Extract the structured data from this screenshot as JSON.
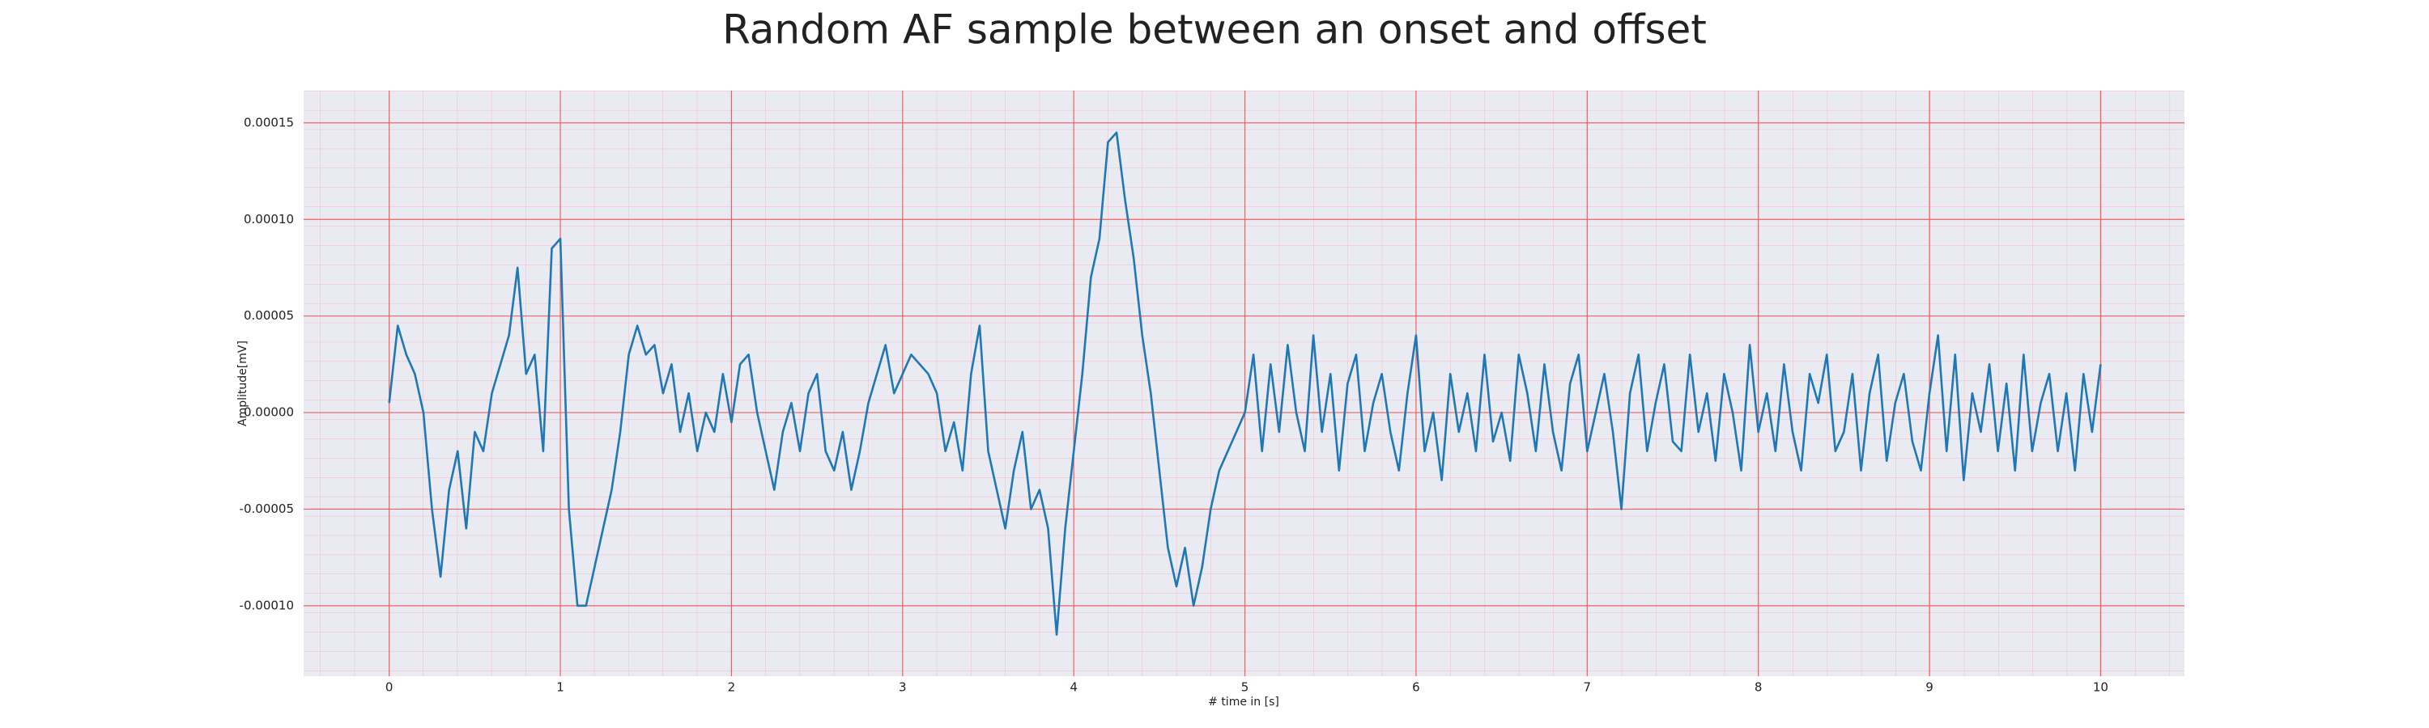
{
  "chart_data": {
    "type": "line",
    "title": "Random AF sample between an onset and offset",
    "xlabel": "# time in [s]",
    "ylabel": "Amplitude[mV]",
    "color": "#1f77b4",
    "grid": true,
    "xlim": [
      -0.5,
      10.49
    ],
    "ylim": [
      -0.0001365,
      0.0001667
    ],
    "xticks": [
      0,
      1,
      2,
      3,
      4,
      5,
      6,
      7,
      8,
      9,
      10
    ],
    "yticks": [
      {
        "value": -0.0001,
        "label": "-0.00010"
      },
      {
        "value": -5e-05,
        "label": "-0.00005"
      },
      {
        "value": 0,
        "label": "0.00000"
      },
      {
        "value": 5e-05,
        "label": "0.00005"
      },
      {
        "value": 0.0001,
        "label": "0.00010"
      },
      {
        "value": 0.00015,
        "label": "0.00015"
      }
    ],
    "x": [
      0,
      0.05,
      0.1,
      0.15,
      0.2,
      0.25,
      0.3,
      0.35,
      0.4,
      0.45,
      0.5,
      0.55,
      0.6,
      0.65,
      0.7,
      0.75,
      0.8,
      0.85,
      0.9,
      0.95,
      1,
      1.05,
      1.1,
      1.15,
      1.2,
      1.25,
      1.3,
      1.35,
      1.4,
      1.45,
      1.5,
      1.55,
      1.6,
      1.65,
      1.7,
      1.75,
      1.8,
      1.85,
      1.9,
      1.95,
      2,
      2.05,
      2.1,
      2.15,
      2.2,
      2.25,
      2.3,
      2.35,
      2.4,
      2.45,
      2.5,
      2.55,
      2.6,
      2.65,
      2.7,
      2.75,
      2.8,
      2.85,
      2.9,
      2.95,
      3,
      3.05,
      3.1,
      3.15,
      3.2,
      3.25,
      3.3,
      3.35,
      3.4,
      3.45,
      3.5,
      3.55,
      3.6,
      3.65,
      3.7,
      3.75,
      3.8,
      3.85,
      3.9,
      3.95,
      4,
      4.05,
      4.1,
      4.15,
      4.2,
      4.25,
      4.3,
      4.35,
      4.4,
      4.45,
      4.5,
      4.55,
      4.6,
      4.65,
      4.7,
      4.75,
      4.8,
      4.85,
      4.9,
      4.95,
      5,
      5.05,
      5.1,
      5.15,
      5.2,
      5.25,
      5.3,
      5.35,
      5.4,
      5.45,
      5.5,
      5.55,
      5.6,
      5.65,
      5.7,
      5.75,
      5.8,
      5.85,
      5.9,
      5.95,
      6,
      6.05,
      6.1,
      6.15,
      6.2,
      6.25,
      6.3,
      6.35,
      6.4,
      6.45,
      6.5,
      6.55,
      6.6,
      6.65,
      6.7,
      6.75,
      6.8,
      6.85,
      6.9,
      6.95,
      7,
      7.05,
      7.1,
      7.15,
      7.2,
      7.25,
      7.3,
      7.35,
      7.4,
      7.45,
      7.5,
      7.55,
      7.6,
      7.65,
      7.7,
      7.75,
      7.8,
      7.85,
      7.9,
      7.95,
      8,
      8.05,
      8.1,
      8.15,
      8.2,
      8.25,
      8.3,
      8.35,
      8.4,
      8.45,
      8.5,
      8.55,
      8.6,
      8.65,
      8.7,
      8.75,
      8.8,
      8.85,
      8.9,
      8.95,
      9,
      9.05,
      9.1,
      9.15,
      9.2,
      9.25,
      9.3,
      9.35,
      9.4,
      9.45,
      9.5,
      9.55,
      9.6,
      9.65,
      9.7,
      9.75,
      9.8,
      9.85,
      9.9,
      9.95,
      10
    ],
    "values": [
      5e-06,
      4.5e-05,
      3e-05,
      2e-05,
      0,
      -5e-05,
      -8.5e-05,
      -4e-05,
      -2e-05,
      -6e-05,
      -1e-05,
      -2e-05,
      1e-05,
      2.5e-05,
      4e-05,
      7.5e-05,
      2e-05,
      3e-05,
      -2e-05,
      8.5e-05,
      9e-05,
      -5e-05,
      -0.0001,
      -0.0001,
      -8e-05,
      -6e-05,
      -4e-05,
      -1e-05,
      3e-05,
      4.5e-05,
      3e-05,
      3.5e-05,
      1e-05,
      2.5e-05,
      -1e-05,
      1e-05,
      -2e-05,
      0,
      -1e-05,
      2e-05,
      -5e-06,
      2.5e-05,
      3e-05,
      0,
      -2e-05,
      -4e-05,
      -1e-05,
      5e-06,
      -2e-05,
      1e-05,
      2e-05,
      -2e-05,
      -3e-05,
      -1e-05,
      -4e-05,
      -2e-05,
      5e-06,
      2e-05,
      3.5e-05,
      1e-05,
      2e-05,
      3e-05,
      2.5e-05,
      2e-05,
      1e-05,
      -2e-05,
      -5e-06,
      -3e-05,
      2e-05,
      4.5e-05,
      -2e-05,
      -4e-05,
      -6e-05,
      -3e-05,
      -1e-05,
      -5e-05,
      -4e-05,
      -6e-05,
      -0.000115,
      -6e-05,
      -2e-05,
      2e-05,
      7e-05,
      9e-05,
      0.00014,
      0.000145,
      0.00011,
      8e-05,
      4e-05,
      1e-05,
      -3e-05,
      -7e-05,
      -9e-05,
      -7e-05,
      -0.0001,
      -8e-05,
      -5e-05,
      -3e-05,
      -2e-05,
      -1e-05,
      0,
      3e-05,
      -2e-05,
      2.5e-05,
      -1e-05,
      3.5e-05,
      0,
      -2e-05,
      4e-05,
      -1e-05,
      2e-05,
      -3e-05,
      1.5e-05,
      3e-05,
      -2e-05,
      5e-06,
      2e-05,
      -1e-05,
      -3e-05,
      1e-05,
      4e-05,
      -2e-05,
      0,
      -3.5e-05,
      2e-05,
      -1e-05,
      1e-05,
      -2e-05,
      3e-05,
      -1.5e-05,
      0,
      -2.5e-05,
      3e-05,
      1e-05,
      -2e-05,
      2.5e-05,
      -1e-05,
      -3e-05,
      1.5e-05,
      3e-05,
      -2e-05,
      0,
      2e-05,
      -1e-05,
      -5e-05,
      1e-05,
      3e-05,
      -2e-05,
      5e-06,
      2.5e-05,
      -1.5e-05,
      -2e-05,
      3e-05,
      -1e-05,
      1e-05,
      -2.5e-05,
      2e-05,
      0,
      -3e-05,
      3.5e-05,
      -1e-05,
      1e-05,
      -2e-05,
      2.5e-05,
      -1e-05,
      -3e-05,
      2e-05,
      5e-06,
      3e-05,
      -2e-05,
      -1e-05,
      2e-05,
      -3e-05,
      1e-05,
      3e-05,
      -2.5e-05,
      5e-06,
      2e-05,
      -1.5e-05,
      -3e-05,
      1e-05,
      4e-05,
      -2e-05,
      3e-05,
      -3.5e-05,
      1e-05,
      -1e-05,
      2.5e-05,
      -2e-05,
      1.5e-05,
      -3e-05,
      3e-05,
      -2e-05,
      5e-06,
      2e-05,
      -2e-05,
      1e-05,
      -3e-05,
      2e-05,
      -1e-05,
      2.5e-05
    ]
  }
}
